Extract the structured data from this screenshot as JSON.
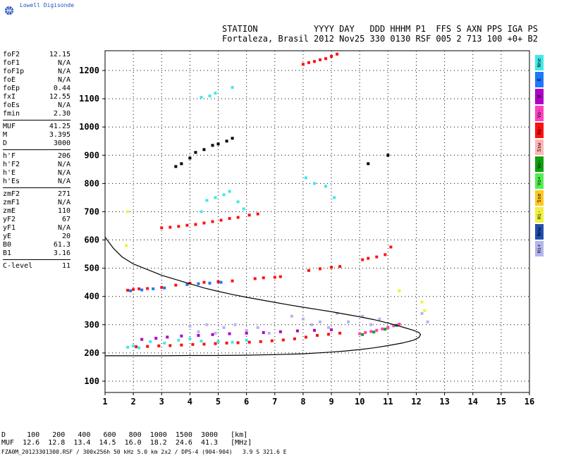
{
  "logo": {
    "text": "Lowell Digisonde"
  },
  "header": {
    "line1": "STATION           YYYY DAY   DDD HHHM P1  FFS S AXN PPS IGA PS",
    "line2": "Fortaleza, Brasil 2012 Nov25 330 0130 RSF 005 2 713 100 +0+ B2"
  },
  "params": [
    {
      "group": [
        {
          "label": "foF2",
          "value": "12.15"
        },
        {
          "label": "foF1",
          "value": "N/A"
        },
        {
          "label": "foF1p",
          "value": "N/A"
        },
        {
          "label": "foE",
          "value": "N/A"
        },
        {
          "label": "foEp",
          "value": "0.44"
        },
        {
          "label": "fxI",
          "value": "12.55"
        },
        {
          "label": "foEs",
          "value": "N/A"
        },
        {
          "label": "fmin",
          "value": "2.30"
        }
      ]
    },
    {
      "group": [
        {
          "label": "MUF",
          "value": "41.25"
        },
        {
          "label": "M",
          "value": "3.395"
        },
        {
          "label": "D",
          "value": "3000"
        }
      ]
    },
    {
      "group": [
        {
          "label": "h'F",
          "value": "206"
        },
        {
          "label": "h'F2",
          "value": "N/A"
        },
        {
          "label": "h'E",
          "value": "N/A"
        },
        {
          "label": "h'Es",
          "value": "N/A"
        }
      ]
    },
    {
      "group": [
        {
          "label": "zmF2",
          "value": "271"
        },
        {
          "label": "zmF1",
          "value": "N/A"
        },
        {
          "label": "zmE",
          "value": "110"
        },
        {
          "label": "yF2",
          "value": "67"
        },
        {
          "label": "yF1",
          "value": "N/A"
        },
        {
          "label": "yE",
          "value": "20"
        },
        {
          "label": "B0",
          "value": "61.3"
        },
        {
          "label": "B1",
          "value": "3.16"
        }
      ]
    },
    {
      "group": [
        {
          "label": "C-level",
          "value": "11"
        }
      ]
    }
  ],
  "legend": [
    {
      "label": "Nne",
      "color": "#40e8e8"
    },
    {
      "label": "E",
      "color": "#1e78ff"
    },
    {
      "label": "W",
      "color": "#b000c8"
    },
    {
      "label": "Vo-",
      "color": "#ff40c0"
    },
    {
      "label": "Xo-",
      "color": "#ff1010"
    },
    {
      "label": "Ssw",
      "color": "#ffb4b4"
    },
    {
      "label": "Vo-",
      "color": "#10a010"
    },
    {
      "label": "Vo+",
      "color": "#50f050"
    },
    {
      "label": "Sse",
      "color": "#ffc820"
    },
    {
      "label": "Hi-",
      "color": "#f0f040"
    },
    {
      "label": "Nnw",
      "color": "#2050b0"
    },
    {
      "label": "Hi+",
      "color": "#b4b4f0"
    }
  ],
  "muf_table": {
    "row1": "D     100   200   400   600   800  1000  1500  3000   [km]",
    "row2": "MUF  12.6  12.8  13.4  14.5  16.0  18.2  24.6  41.3   [MHz]"
  },
  "footer": "FZA0M_20123301300.RSF / 300x256h 50 kHz 5.0 km 2x2 / DPS-4 (904-904)   3.9 S 321.6 E",
  "chart_data": {
    "type": "scatter",
    "xlim": [
      1,
      16
    ],
    "ylim": [
      60,
      1270
    ],
    "x_ticks": [
      1,
      2,
      3,
      4,
      5,
      6,
      7,
      8,
      9,
      10,
      11,
      12,
      13,
      14,
      15,
      16
    ],
    "y_ticks": [
      100,
      200,
      300,
      400,
      500,
      600,
      700,
      800,
      900,
      1000,
      1100,
      1200
    ],
    "grid": "dotted",
    "series": [
      {
        "color": "#b4b4f0",
        "x": [
          4.0,
          4.3,
          4.6,
          4.9,
          5.2,
          5.6,
          6.0,
          6.4,
          6.8,
          7.6,
          8.0,
          8.3,
          8.6,
          8.9,
          9.2,
          9.6,
          10.1,
          10.4,
          10.7,
          11.0,
          12.2,
          12.4
        ],
        "y": [
          295,
          275,
          300,
          270,
          290,
          300,
          280,
          290,
          270,
          330,
          320,
          300,
          310,
          290,
          340,
          310,
          330,
          300,
          320,
          290,
          340,
          310
        ]
      },
      {
        "color": "#ff1010",
        "x": [
          2.1,
          2.5,
          2.9,
          3.3,
          3.7,
          4.1,
          4.5,
          4.9,
          5.3,
          5.7,
          6.1,
          6.5,
          6.9,
          7.3,
          7.7,
          8.1,
          8.5,
          8.9,
          9.3
        ],
        "y": [
          222,
          223,
          225,
          226,
          228,
          230,
          231,
          233,
          235,
          236,
          238,
          240,
          243,
          246,
          250,
          256,
          262,
          266,
          270
        ]
      },
      {
        "color": "#40e8e8",
        "x": [
          1.8,
          2.0,
          2.2,
          2.6,
          3.1,
          3.6,
          4.0,
          4.4,
          5.0,
          5.5,
          6.0
        ],
        "y": [
          220,
          225,
          218,
          240,
          235,
          245,
          250,
          242,
          240,
          238,
          245
        ]
      },
      {
        "color": "#b000c8",
        "x": [
          2.3,
          2.8,
          3.2,
          3.7,
          4.3,
          4.8,
          5.4,
          6.0,
          6.6,
          7.2,
          7.8,
          8.4,
          9.0
        ],
        "y": [
          248,
          252,
          256,
          260,
          262,
          265,
          268,
          270,
          272,
          275,
          278,
          280,
          282
        ]
      },
      {
        "color": "#ff40c0",
        "x": [
          10.0,
          10.2,
          10.4,
          10.6,
          10.8,
          11.0,
          11.2,
          11.4
        ],
        "y": [
          268,
          272,
          276,
          280,
          285,
          290,
          296,
          302
        ]
      },
      {
        "color": "#10a010",
        "x": [
          10.1,
          10.5,
          10.9,
          11.3
        ],
        "y": [
          265,
          274,
          284,
          298
        ]
      },
      {
        "color": "#ff1010",
        "x": [
          1.8,
          2.0,
          2.2,
          2.5,
          3.0,
          3.5,
          4.0,
          4.5,
          5.0,
          5.5,
          6.3,
          6.6,
          7.0,
          7.2,
          8.2,
          8.6,
          9.0,
          9.3,
          10.1,
          10.3,
          10.6,
          10.9,
          11.1
        ],
        "y": [
          422,
          425,
          427,
          428,
          432,
          440,
          447,
          450,
          452,
          455,
          463,
          466,
          468,
          470,
          492,
          498,
          503,
          506,
          530,
          535,
          540,
          548,
          575
        ]
      },
      {
        "color": "#1e78ff",
        "x": [
          1.9,
          2.3,
          2.7,
          3.1,
          3.9,
          4.3,
          4.7,
          5.1
        ],
        "y": [
          420,
          423,
          427,
          430,
          442,
          445,
          447,
          450
        ]
      },
      {
        "color": "#ff1010",
        "x": [
          3.0,
          3.3,
          3.6,
          3.9,
          4.2,
          4.5,
          4.8,
          5.1,
          5.4,
          5.7,
          6.1,
          6.4
        ],
        "y": [
          643,
          645,
          648,
          652,
          655,
          660,
          665,
          670,
          676,
          680,
          688,
          692
        ]
      },
      {
        "color": "#40e8e8",
        "x": [
          4.4,
          4.6,
          4.9,
          5.2,
          5.4,
          5.7,
          5.9,
          8.1,
          8.4,
          8.8,
          9.1
        ],
        "y": [
          700,
          740,
          750,
          760,
          772,
          735,
          710,
          820,
          800,
          790,
          750
        ]
      },
      {
        "color": "#000000",
        "x": [
          3.5,
          3.7,
          4.0,
          4.2,
          4.5,
          4.8,
          5.0,
          5.3,
          5.5,
          10.3,
          11.0
        ],
        "y": [
          860,
          870,
          890,
          910,
          920,
          935,
          940,
          950,
          960,
          870,
          900
        ]
      },
      {
        "color": "#ff1010",
        "x": [
          8.0,
          8.2,
          8.4,
          8.6,
          8.8,
          9.0,
          9.2
        ],
        "y": [
          1222,
          1228,
          1232,
          1238,
          1242,
          1250,
          1258
        ]
      },
      {
        "color": "#40e8e8",
        "x": [
          4.4,
          4.7,
          4.9,
          5.5
        ],
        "y": [
          1105,
          1110,
          1120,
          1140
        ]
      },
      {
        "color": "#f0f040",
        "x": [
          1.8,
          1.75,
          11.4,
          12.2,
          12.3
        ],
        "y": [
          700,
          580,
          420,
          380,
          350
        ]
      }
    ],
    "curves": [
      {
        "name": "",
        "color": "#000000",
        "x": [
          1.0,
          1.3,
          1.6,
          2.0,
          2.5,
          3.0,
          3.5,
          4.0,
          4.5,
          5.0,
          5.5,
          6.0,
          6.5,
          7.0,
          7.5,
          8.0,
          8.5,
          9.0,
          9.5,
          10.0,
          10.5,
          11.0,
          11.5,
          11.9,
          12.1,
          12.15,
          12.1,
          11.9,
          11.5,
          11.0,
          10.5,
          10.0,
          9.5,
          9.0,
          8.0,
          7.0,
          6.0,
          5.0,
          4.0,
          3.0,
          2.0,
          1.5,
          1.0
        ],
        "y": [
          610,
          570,
          540,
          515,
          495,
          475,
          460,
          445,
          430,
          418,
          407,
          397,
          388,
          379,
          370,
          362,
          354,
          346,
          337,
          328,
          318,
          306,
          292,
          280,
          272,
          265,
          255,
          245,
          235,
          226,
          218,
          212,
          207,
          203,
          197,
          194,
          192,
          191,
          191,
          190,
          190,
          190,
          190
        ]
      }
    ]
  }
}
